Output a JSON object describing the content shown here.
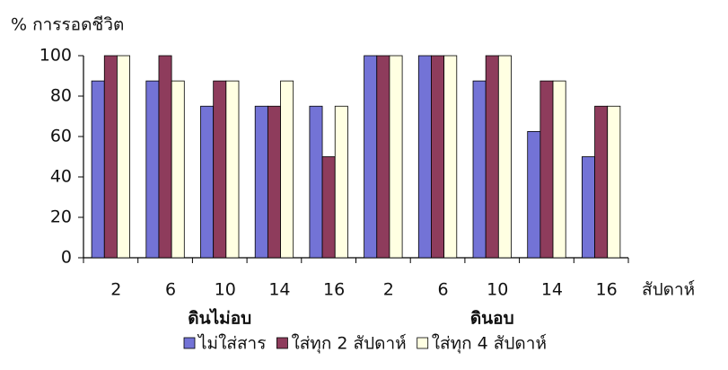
{
  "chart_data": {
    "type": "bar",
    "y_label": "% การรอดชีวิต",
    "x_label": "สัปดาห์",
    "categories": [
      "2",
      "6",
      "10",
      "14",
      "16",
      "2",
      "6",
      "10",
      "14",
      "16"
    ],
    "group_labels": [
      "ดินไม่อบ",
      "ดินอบ"
    ],
    "series": [
      {
        "name": "ไม่ใส่สาร",
        "color": "#7373d6",
        "values": [
          87.5,
          87.5,
          75,
          75,
          75,
          100,
          100,
          87.5,
          62.5,
          50
        ]
      },
      {
        "name": "ใส่ทุก 2 สัปดาห์",
        "color": "#8e3c5c",
        "values": [
          100,
          100,
          87.5,
          75,
          50,
          100,
          100,
          100,
          87.5,
          75
        ]
      },
      {
        "name": "ใส่ทุก 4 สัปดาห์",
        "color": "#ffffe2",
        "values": [
          100,
          87.5,
          87.5,
          87.5,
          75,
          100,
          100,
          100,
          87.5,
          75
        ]
      }
    ],
    "ylim": [
      0,
      100
    ],
    "yticks": [
      0,
      20,
      40,
      60,
      80,
      100
    ],
    "grid": false
  }
}
